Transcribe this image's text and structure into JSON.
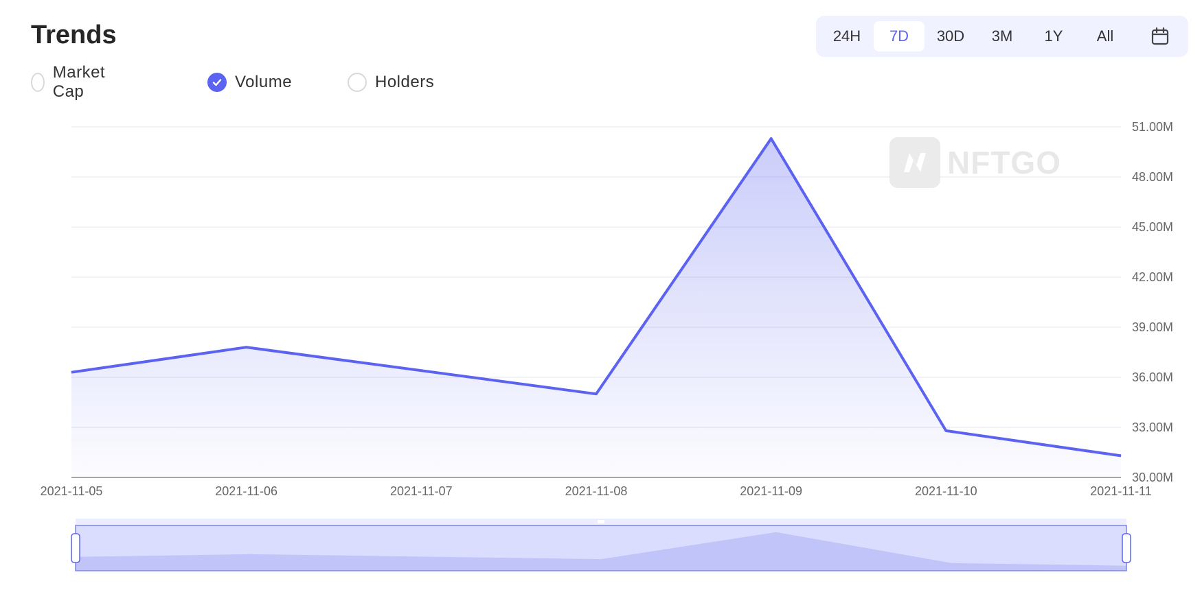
{
  "header": {
    "title": "Trends"
  },
  "legend": {
    "items": [
      {
        "label": "Market Cap",
        "checked": false
      },
      {
        "label": "Volume",
        "checked": true
      },
      {
        "label": "Holders",
        "checked": false
      }
    ]
  },
  "time_range": {
    "options": [
      "24H",
      "7D",
      "30D",
      "3M",
      "1Y",
      "All"
    ],
    "selected": "7D",
    "calendar_icon": "calendar-icon"
  },
  "watermark": {
    "text": "NFTGO",
    "icon": "nftgo-logo-icon"
  },
  "colors": {
    "accent": "#5b63f0",
    "grid": "#e4e6f0",
    "range_bg": "#f1f2ff"
  },
  "chart_data": {
    "type": "area",
    "x": [
      "2021-11-05",
      "2021-11-06",
      "2021-11-07",
      "2021-11-08",
      "2021-11-09",
      "2021-11-10",
      "2021-11-11"
    ],
    "x_tick_labels": [
      "2021-11-05",
      "2021-11-06",
      "2021-11-07",
      "2021-11-08",
      "2021-11-09",
      "2021-11-10",
      "2021-11-11"
    ],
    "series": [
      {
        "name": "Volume",
        "values": [
          36.3,
          37.8,
          null,
          35.0,
          50.3,
          32.8,
          31.3
        ]
      }
    ],
    "y_unit": "M",
    "y_ticks": [
      "30.00M",
      "33.00M",
      "36.00M",
      "39.00M",
      "42.00M",
      "45.00M",
      "48.00M",
      "51.00M"
    ],
    "ylim": [
      30,
      51
    ],
    "grid": true,
    "y_axis_position": "right",
    "has_range_slider": true
  }
}
